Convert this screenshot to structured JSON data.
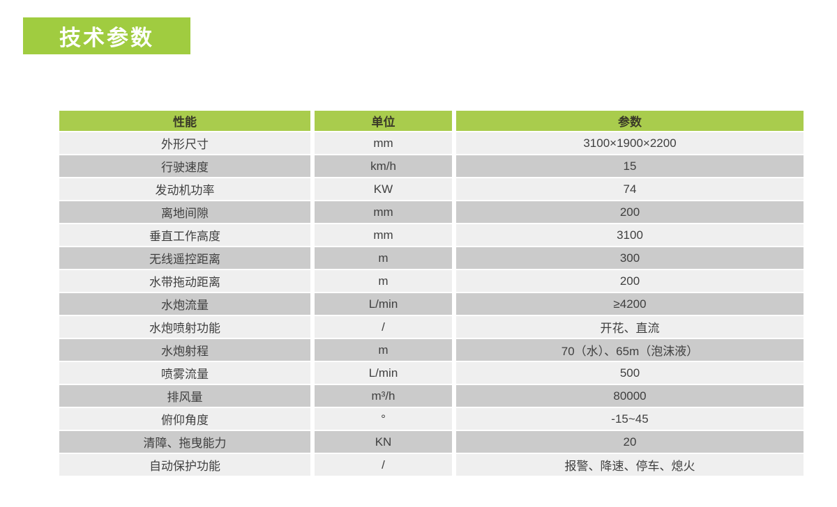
{
  "page": {
    "title_badge": "技术参数"
  },
  "table": {
    "headers": [
      "性能",
      "单位",
      "参数"
    ],
    "rows": [
      {
        "name": "外形尺寸",
        "unit": "mm",
        "value": "3100×1900×2200"
      },
      {
        "name": "行驶速度",
        "unit": "km/h",
        "value": "15"
      },
      {
        "name": "发动机功率",
        "unit": "KW",
        "value": "74"
      },
      {
        "name": "离地间隙",
        "unit": "mm",
        "value": "200"
      },
      {
        "name": "垂直工作高度",
        "unit": "mm",
        "value": "3100"
      },
      {
        "name": "无线遥控距离",
        "unit": "m",
        "value": "300"
      },
      {
        "name": "水带拖动距离",
        "unit": "m",
        "value": "200"
      },
      {
        "name": "水炮流量",
        "unit": "L/min",
        "value": "≥4200"
      },
      {
        "name": "水炮喷射功能",
        "unit": "/",
        "value": "开花、直流"
      },
      {
        "name": "水炮射程",
        "unit": "m",
        "value": "70（水）、65m（泡沫液）"
      },
      {
        "name": "喷雾流量",
        "unit": "L/min",
        "value": "500"
      },
      {
        "name": "排风量",
        "unit": "m³/h",
        "value": "80000"
      },
      {
        "name": "俯仰角度",
        "unit": "°",
        "value": "-15~45"
      },
      {
        "name": "清障、拖曳能力",
        "unit": "KN",
        "value": "20"
      },
      {
        "name": "自动保护功能",
        "unit": "/",
        "value": "报警、降速、停车、熄火"
      }
    ]
  },
  "colors": {
    "badge_green": "#a0cc40",
    "header_green": "#a9cc4d",
    "row_light": "#efefef",
    "row_dark": "#cbcbcb",
    "text": "#3f3f3f"
  }
}
